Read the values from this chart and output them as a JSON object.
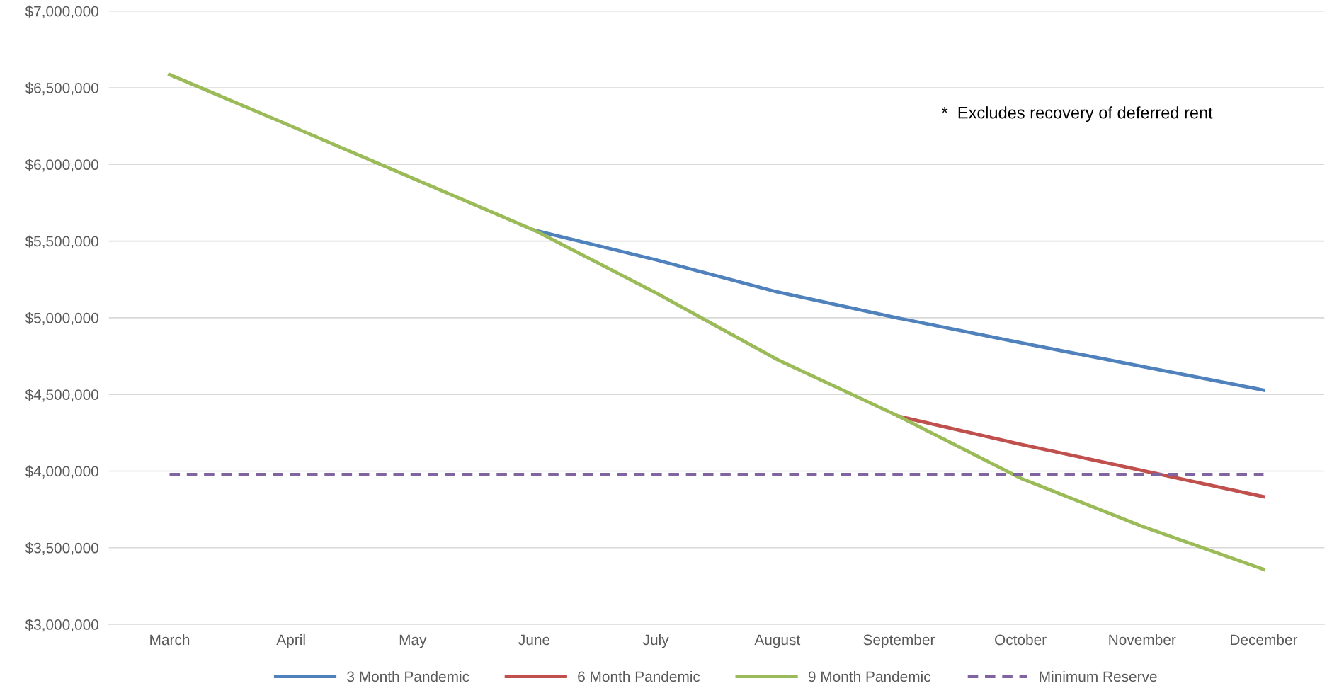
{
  "chart_data": {
    "type": "line",
    "categories": [
      "March",
      "April",
      "May",
      "June",
      "July",
      "August",
      "September",
      "October",
      "November",
      "December"
    ],
    "series": [
      {
        "name": "3 Month Pandemic",
        "color": "#4f81bd",
        "values": [
          null,
          null,
          null,
          5571000,
          5378000,
          5168000,
          4997000,
          4837000,
          4683000,
          4528000
        ]
      },
      {
        "name": "6 Month Pandemic",
        "color": "#c0504d",
        "values": [
          null,
          null,
          null,
          null,
          null,
          null,
          4357000,
          4175000,
          4004000,
          3833000
        ]
      },
      {
        "name": "9 Month Pandemic",
        "color": "#9bbb59",
        "values": [
          6586000,
          6250000,
          5910000,
          5571000,
          5163000,
          4727000,
          4357000,
          3954000,
          3640000,
          3359000
        ]
      },
      {
        "name": "Minimum Reserve",
        "color": "#8064a2",
        "line_style": "dashed",
        "values": [
          3977000,
          3977000,
          3977000,
          3977000,
          3977000,
          3977000,
          3977000,
          3977000,
          3977000,
          3977000
        ]
      }
    ],
    "ylim": [
      3000000,
      7000000
    ],
    "yticks": [
      {
        "value": 3000000,
        "label": "$3,000,000"
      },
      {
        "value": 3500000,
        "label": "$3,500,000"
      },
      {
        "value": 4000000,
        "label": "$4,000,000"
      },
      {
        "value": 4500000,
        "label": "$4,500,000"
      },
      {
        "value": 5000000,
        "label": "$5,000,000"
      },
      {
        "value": 5500000,
        "label": "$5,500,000"
      },
      {
        "value": 6000000,
        "label": "$6,000,000"
      },
      {
        "value": 6500000,
        "label": "$6,500,000"
      },
      {
        "value": 7000000,
        "label": "$7,000,000"
      }
    ],
    "grid": "y",
    "legend": "bottom",
    "marker": "none",
    "line_style": "solid",
    "annotations": [
      "*  Excludes recovery of deferred rent"
    ]
  }
}
